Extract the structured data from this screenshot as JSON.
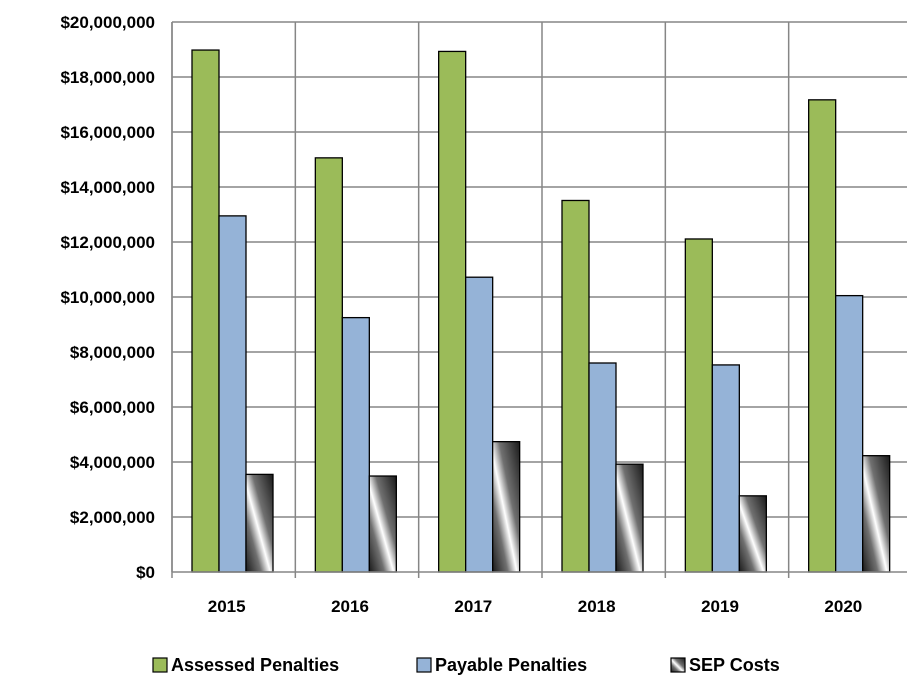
{
  "chart_data": {
    "type": "bar",
    "title": "",
    "xlabel": "",
    "ylabel": "",
    "categories": [
      "2015",
      "2016",
      "2017",
      "2018",
      "2019",
      "2020"
    ],
    "ylim": [
      0,
      20000000
    ],
    "yticks": [
      0,
      2000000,
      4000000,
      6000000,
      8000000,
      10000000,
      12000000,
      14000000,
      16000000,
      18000000,
      20000000
    ],
    "ytick_labels": [
      "$0",
      "$2,000,000",
      "$4,000,000",
      "$6,000,000",
      "$8,000,000",
      "$10,000,000",
      "$12,000,000",
      "$14,000,000",
      "$16,000,000",
      "$18,000,000",
      "$20,000,000"
    ],
    "grid": true,
    "legend_position": "bottom",
    "series": [
      {
        "name": "Assessed Penalties",
        "color": "#9bbb59",
        "values": [
          18980000,
          15060000,
          18930000,
          13510000,
          12110000,
          17170000
        ]
      },
      {
        "name": "Payable Penalties",
        "color": "#95b3d7",
        "values": [
          12950000,
          9250000,
          10720000,
          7600000,
          7530000,
          10050000
        ]
      },
      {
        "name": "SEP Costs",
        "color": "#808080",
        "pattern": "gradient",
        "values": [
          3550000,
          3490000,
          4740000,
          3920000,
          2770000,
          4230000
        ]
      }
    ]
  }
}
